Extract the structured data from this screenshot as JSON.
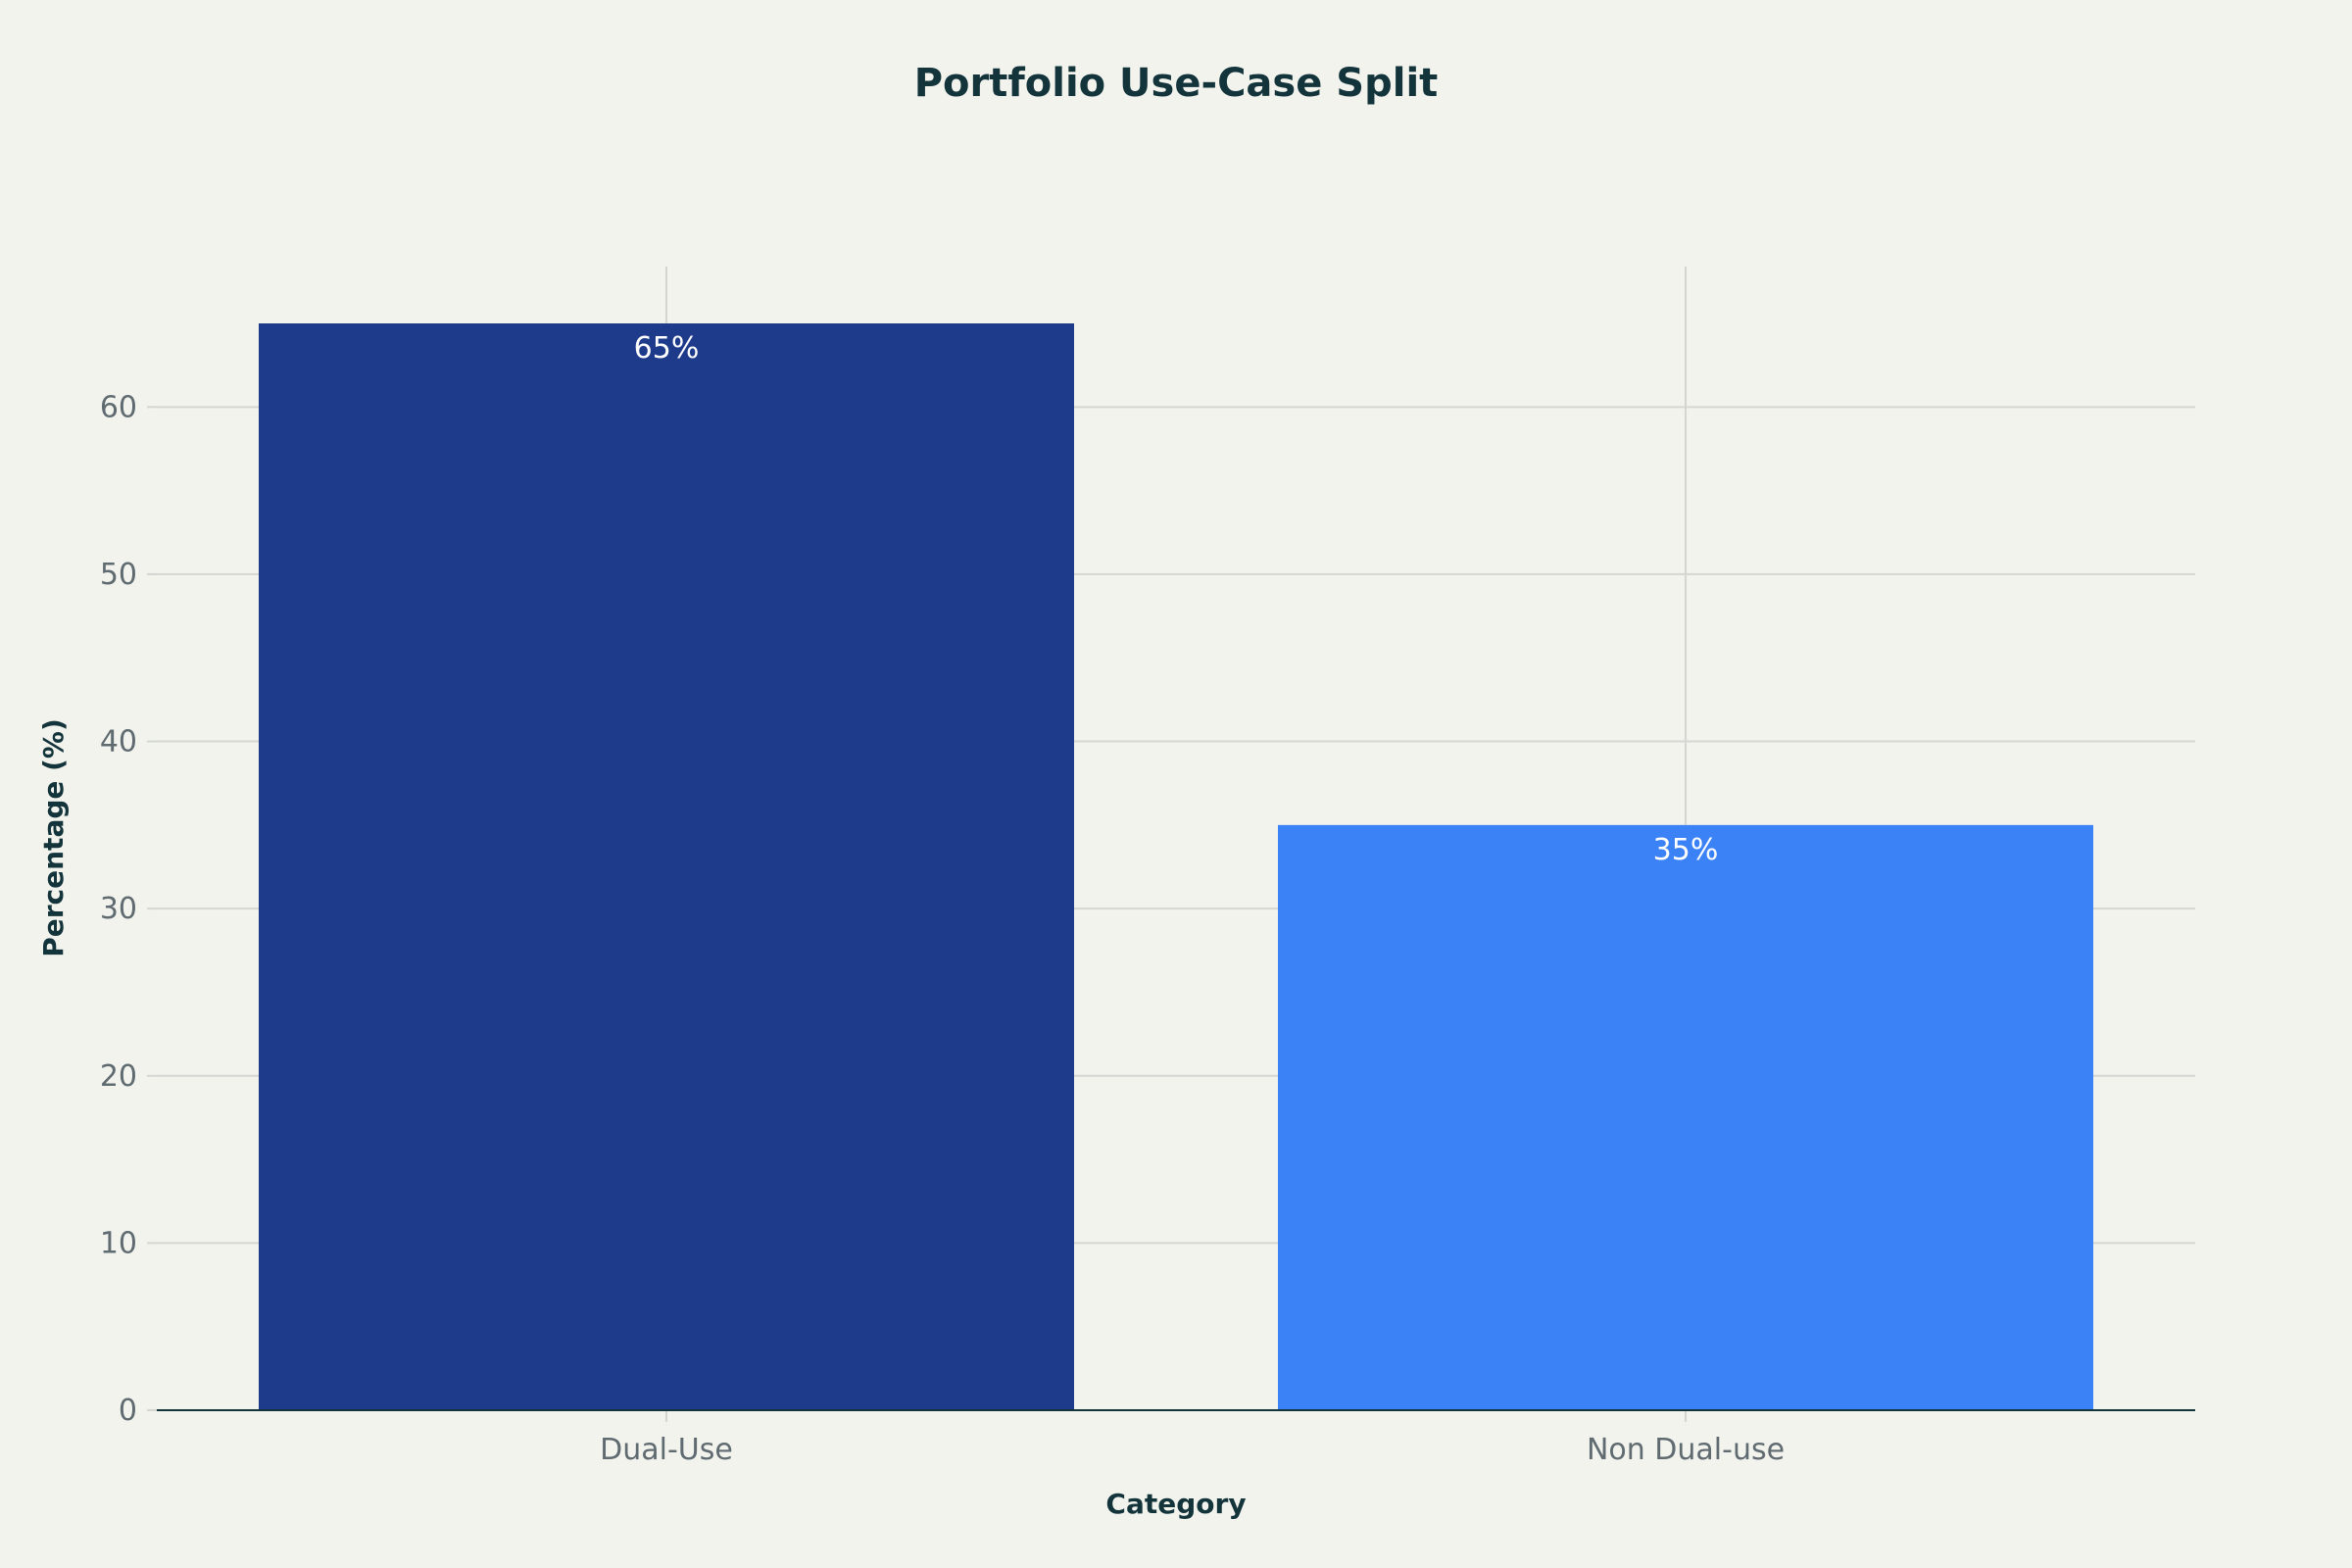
{
  "chart_data": {
    "type": "bar",
    "title": "Portfolio Use-Case Split",
    "xlabel": "Category",
    "ylabel": "Percentage (%)",
    "categories": [
      "Dual-Use",
      "Non Dual-use"
    ],
    "values": [
      65,
      35
    ],
    "data_labels": [
      "65%",
      "35%"
    ],
    "colors": [
      "#1e3a8a",
      "#3b82f6"
    ],
    "ylim": [
      0,
      68.4
    ],
    "yticks": [
      0,
      10,
      20,
      30,
      40,
      50,
      60
    ],
    "grid": true,
    "legend": "none"
  }
}
